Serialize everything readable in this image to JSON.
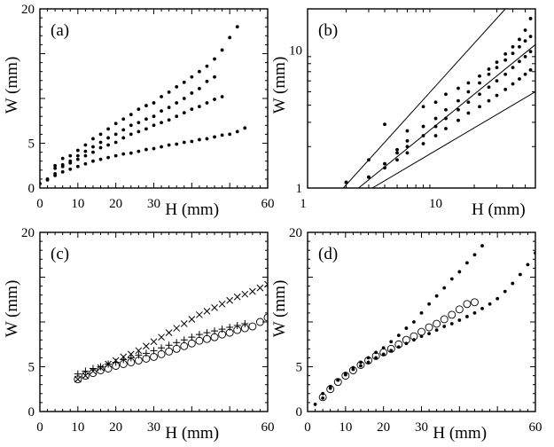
{
  "chart_data": [
    {
      "panel": "(a)",
      "type": "scatter",
      "xlabel": "H (mm)",
      "ylabel": "W (mm)",
      "xlim": [
        0,
        60
      ],
      "ylim": [
        0,
        20
      ],
      "xticks": [
        0,
        10,
        20,
        30,
        60
      ],
      "yticks": [
        0,
        5,
        20
      ],
      "series": [
        {
          "marker": "dot",
          "x": [
            0,
            2,
            4,
            6,
            8,
            10,
            12,
            14,
            16,
            18,
            20,
            22,
            24,
            26,
            28,
            30,
            32,
            34,
            36,
            38,
            40,
            42,
            44,
            46,
            48,
            50,
            52,
            54
          ],
          "y": [
            0.5,
            1.0,
            1.4,
            1.8,
            2.1,
            2.4,
            2.7,
            3.0,
            3.2,
            3.4,
            3.6,
            3.8,
            3.9,
            4.1,
            4.3,
            4.4,
            4.6,
            4.8,
            4.9,
            5.1,
            5.2,
            5.4,
            5.5,
            5.7,
            5.9,
            6.0,
            6.3,
            6.7
          ]
        },
        {
          "marker": "dot",
          "x": [
            2,
            4,
            6,
            8,
            10,
            12,
            14,
            16,
            18,
            20,
            22,
            24,
            26,
            28,
            30,
            32,
            34,
            36,
            38,
            40,
            42,
            44,
            46,
            48
          ],
          "y": [
            0.9,
            1.6,
            2.4,
            2.8,
            3.2,
            3.6,
            4.0,
            4.5,
            4.8,
            5.1,
            5.6,
            6.0,
            6.3,
            6.6,
            7.0,
            7.3,
            7.6,
            8.0,
            8.4,
            8.8,
            9.1,
            9.5,
            9.9,
            10.2
          ]
        },
        {
          "marker": "dot",
          "x": [
            4,
            6,
            8,
            10,
            12,
            14,
            16,
            18,
            20,
            22,
            24,
            26,
            28,
            30,
            32,
            34,
            36,
            38,
            40,
            42,
            44,
            46
          ],
          "y": [
            2.2,
            2.6,
            3.0,
            3.6,
            4.1,
            4.6,
            5.1,
            5.6,
            6.0,
            6.5,
            7.0,
            7.3,
            7.7,
            8.0,
            8.6,
            9.0,
            9.5,
            10.0,
            10.6,
            11.1,
            11.9,
            12.4
          ]
        },
        {
          "marker": "dot",
          "x": [
            4,
            6,
            8,
            10,
            12,
            14,
            16,
            18,
            20,
            22,
            24,
            26,
            28,
            30,
            32,
            34,
            36,
            38,
            40,
            42,
            44,
            46,
            48,
            50,
            52
          ],
          "y": [
            2.5,
            3.3,
            3.6,
            4.2,
            4.8,
            5.5,
            6.0,
            6.6,
            7.2,
            7.7,
            8.2,
            8.8,
            9.2,
            9.5,
            10.2,
            10.7,
            11.3,
            11.8,
            12.4,
            13.0,
            13.6,
            14.4,
            15.4,
            16.8,
            18.0
          ]
        }
      ]
    },
    {
      "panel": "(b)",
      "type": "scatter",
      "scale": "log-log",
      "xlabel": "H (mm)",
      "ylabel": "W (mm)",
      "xlim": [
        1,
        60
      ],
      "ylim": [
        1,
        20
      ],
      "xticks": [
        1,
        10
      ],
      "yticks": [
        1,
        10
      ],
      "reference_lines": [
        {
          "x": [
            1.9,
            35
          ],
          "y": [
            1,
            20
          ]
        },
        {
          "x": [
            2.5,
            60
          ],
          "y": [
            1,
            11
          ]
        },
        {
          "x": [
            3.2,
            60
          ],
          "y": [
            1,
            5
          ]
        }
      ],
      "series": [
        {
          "marker": "dot",
          "x": [
            2,
            3,
            4,
            5,
            6,
            8,
            10,
            12,
            15,
            18,
            22,
            26,
            30,
            35,
            40,
            45,
            50,
            55
          ],
          "y": [
            1.1,
            1.2,
            1.5,
            1.9,
            2.2,
            2.8,
            3.2,
            3.7,
            4.3,
            5.0,
            5.8,
            6.7,
            7.5,
            8.5,
            9.5,
            10.6,
            11.7,
            12.6
          ]
        },
        {
          "marker": "dot",
          "x": [
            3,
            4,
            5,
            6,
            8,
            10,
            12,
            15,
            18,
            22,
            26,
            30,
            35,
            40,
            45,
            50,
            55
          ],
          "y": [
            1.2,
            1.5,
            1.8,
            2.0,
            2.4,
            2.8,
            3.2,
            3.7,
            4.2,
            4.8,
            5.4,
            6.0,
            6.7,
            7.5,
            8.3,
            9.0,
            9.8
          ]
        },
        {
          "marker": "dot",
          "x": [
            4,
            5,
            6,
            8,
            10,
            12,
            15,
            18,
            22,
            26,
            30,
            35,
            40,
            45,
            50,
            55
          ],
          "y": [
            1.4,
            1.6,
            1.8,
            2.1,
            2.4,
            2.7,
            3.1,
            3.5,
            3.9,
            4.3,
            4.7,
            5.2,
            5.7,
            6.2,
            6.7,
            7.2
          ]
        },
        {
          "marker": "dot",
          "x": [
            2,
            3,
            4,
            6,
            8,
            10,
            12,
            15,
            18,
            22,
            26,
            30,
            35,
            40,
            45,
            50,
            55
          ],
          "y": [
            1.1,
            1.6,
            2.9,
            2.6,
            3.9,
            4.2,
            4.8,
            5.3,
            5.8,
            6.5,
            7.3,
            8.2,
            9.4,
            10.6,
            12.0,
            14.0,
            17.0
          ]
        }
      ]
    },
    {
      "panel": "(c)",
      "type": "scatter",
      "xlabel": "H (mm)",
      "ylabel": "W (mm)",
      "xlim": [
        0,
        60
      ],
      "ylim": [
        0,
        20
      ],
      "xticks": [
        0,
        10,
        20,
        30,
        60
      ],
      "yticks": [
        0,
        5,
        20
      ],
      "series": [
        {
          "marker": "x",
          "x": [
            10,
            12,
            14,
            16,
            18,
            20,
            22,
            24,
            26,
            28,
            30,
            32,
            34,
            36,
            38,
            40,
            42,
            44,
            46,
            48,
            50,
            52,
            54,
            56,
            58,
            60
          ],
          "y": [
            3.6,
            4.0,
            4.5,
            4.9,
            5.3,
            5.7,
            6.1,
            6.4,
            6.8,
            7.3,
            7.8,
            8.3,
            8.8,
            9.3,
            9.8,
            10.3,
            10.8,
            11.2,
            11.6,
            12.0,
            12.4,
            12.8,
            13.1,
            13.4,
            13.8,
            14.2
          ]
        },
        {
          "marker": "o",
          "x": [
            10,
            12,
            14,
            16,
            18,
            20,
            22,
            24,
            26,
            28,
            30,
            32,
            34,
            36,
            38,
            40,
            42,
            44,
            46,
            48,
            50,
            52,
            54,
            56,
            58,
            60
          ],
          "y": [
            3.6,
            4.0,
            4.3,
            4.6,
            4.8,
            5.1,
            5.3,
            5.5,
            5.7,
            5.9,
            6.1,
            6.4,
            6.7,
            7.0,
            7.3,
            7.6,
            7.9,
            8.1,
            8.3,
            8.6,
            8.8,
            9.1,
            9.3,
            9.5,
            10.0,
            10.5
          ]
        },
        {
          "marker": "+",
          "x": [
            10,
            12,
            14,
            16,
            18,
            20,
            22,
            24,
            26,
            28,
            30,
            32,
            34,
            36,
            38,
            40,
            42,
            44,
            46,
            48,
            50,
            52,
            54
          ],
          "y": [
            4.2,
            4.5,
            4.8,
            5.0,
            5.3,
            5.5,
            5.8,
            6.0,
            6.3,
            6.5,
            6.8,
            7.1,
            7.4,
            7.7,
            8.0,
            8.3,
            8.6,
            8.8,
            9.0,
            9.2,
            9.4,
            9.6,
            9.8
          ]
        }
      ]
    },
    {
      "panel": "(d)",
      "type": "scatter",
      "xlabel": "H (mm)",
      "ylabel": "W (mm)",
      "xlim": [
        0,
        60
      ],
      "ylim": [
        0,
        20
      ],
      "xticks": [
        0,
        10,
        20,
        30,
        60
      ],
      "yticks": [
        0,
        5,
        20
      ],
      "series": [
        {
          "marker": "dot",
          "x": [
            2,
            4,
            6,
            8,
            10,
            12,
            14,
            16,
            18,
            20,
            22,
            24,
            26,
            28,
            30,
            32,
            34,
            36,
            38,
            40,
            42,
            44,
            46,
            48,
            50,
            52,
            54,
            56,
            58,
            60
          ],
          "y": [
            0.8,
            2.0,
            2.8,
            3.5,
            4.1,
            4.7,
            5.1,
            5.5,
            6.0,
            6.4,
            6.8,
            7.2,
            7.6,
            8.0,
            8.4,
            8.7,
            9.1,
            9.5,
            9.8,
            10.2,
            10.6,
            11.0,
            11.5,
            12.0,
            12.6,
            13.4,
            14.3,
            15.3,
            16.4,
            17.7
          ]
        },
        {
          "marker": "dot",
          "x": [
            4,
            6,
            8,
            10,
            12,
            14,
            16,
            18,
            20,
            22,
            24,
            26,
            28,
            30,
            32,
            34,
            36,
            38,
            40,
            42,
            44,
            46
          ],
          "y": [
            1.5,
            2.6,
            3.5,
            4.2,
            4.9,
            5.5,
            6.0,
            6.6,
            7.1,
            7.8,
            8.5,
            9.3,
            10.0,
            11.0,
            12.0,
            12.9,
            13.8,
            14.8,
            15.6,
            16.6,
            17.5,
            18.5
          ]
        },
        {
          "marker": "o",
          "x": [
            4,
            6,
            8,
            10,
            12,
            14,
            16,
            18,
            20,
            22,
            24,
            26,
            28,
            30,
            32,
            34,
            36,
            38,
            40,
            42,
            44
          ],
          "y": [
            1.6,
            2.5,
            3.3,
            4.0,
            4.6,
            5.2,
            5.7,
            6.2,
            6.6,
            7.0,
            7.5,
            8.0,
            8.4,
            8.9,
            9.4,
            9.8,
            10.3,
            10.8,
            11.4,
            12.0,
            12.2
          ]
        }
      ]
    }
  ]
}
